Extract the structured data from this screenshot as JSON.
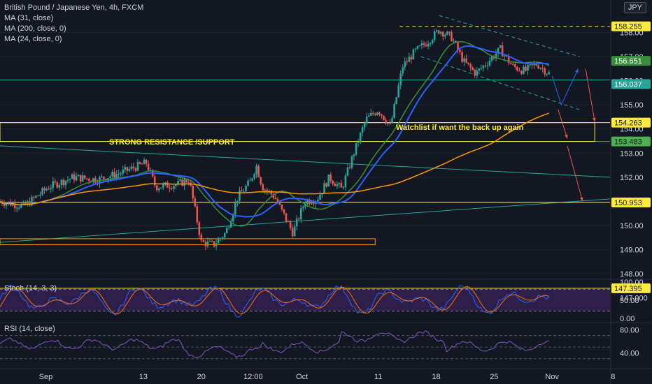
{
  "header": {
    "title": "British Pound / Japanese Yen, 4h, FXCM",
    "indicators": [
      "MA (31, close)",
      "MA (200, close, 0)",
      "MA (24, close, 0)"
    ],
    "currency": "JPY"
  },
  "annotations": {
    "resistance_label": "STRONG RESISTANCE /SUPPORT",
    "watchlist_label": "Watchlist if want the back up again"
  },
  "stoch": {
    "label": "Stoch (14, 3, 3)",
    "ticks": [
      "100.00",
      "50.00",
      "0.00"
    ]
  },
  "rsi": {
    "label": "RSI (14, close)",
    "ticks": [
      "80.00",
      "40.00"
    ]
  },
  "colors": {
    "background": "#131722",
    "up": "#26a69a",
    "down": "#ef5350",
    "ma31": "#2962ff",
    "ma200": "#ff9800",
    "ma24": "#388e3c",
    "level_yellow": "#ffeb3b",
    "level_green": "#4caf50",
    "trend_cyan": "#26a69a"
  },
  "chart_data": {
    "type": "candlestick",
    "y_range": [
      148.0,
      159.0
    ],
    "x_ticks": [
      "Sep",
      "13",
      "20",
      "12:00",
      "Oct",
      "11",
      "18",
      "25",
      "Nov",
      "8"
    ],
    "price_ticks": [
      "158.00",
      "157.00",
      "156.00",
      "155.00",
      "154.00",
      "153.00",
      "152.00",
      "151.00",
      "150.00",
      "149.00",
      "148.00",
      "147.000"
    ],
    "price_badges": [
      {
        "value": "158.255",
        "color": "#ffeb3b",
        "text_color": "#131722"
      },
      {
        "value": "156.651",
        "color": "#388e3c",
        "text_color": "#ffffff"
      },
      {
        "value": "156.037",
        "color": "#26a69a",
        "text_color": "#ffffff"
      },
      {
        "value": "154.263",
        "color": "#ffeb3b",
        "text_color": "#131722"
      },
      {
        "value": "153.483",
        "color": "#4caf50",
        "text_color": "#131722"
      },
      {
        "value": "150.953",
        "color": "#ffeb3b",
        "text_color": "#131722"
      },
      {
        "value": "147.395",
        "color": "#ffeb3b",
        "text_color": "#131722"
      }
    ],
    "levels": [
      {
        "name": "level-158-255",
        "value": 158.255,
        "style": "dashed",
        "color": "#ffeb3b",
        "x_start": 0.655
      },
      {
        "name": "level-156-037",
        "value": 156.037,
        "style": "solid",
        "color": "#26a69a",
        "x_start": 0
      },
      {
        "name": "level-154-263",
        "value": 154.263,
        "style": "solid",
        "color": "#ffeb3b",
        "x_start": 0
      },
      {
        "name": "level-153-483",
        "value": 153.483,
        "style": "solid",
        "color": "#4caf50",
        "x_start": 0
      },
      {
        "name": "level-150-953",
        "value": 150.953,
        "style": "solid",
        "color": "#ffeb3b",
        "x_start": 0
      },
      {
        "name": "level-147-395",
        "value": 147.395,
        "style": "solid",
        "color": "#ffeb3b",
        "x_start": 0
      }
    ],
    "price_path": [
      [
        0.0,
        151.0
      ],
      [
        0.04,
        150.8
      ],
      [
        0.08,
        151.6
      ],
      [
        0.12,
        152.0
      ],
      [
        0.16,
        151.9
      ],
      [
        0.2,
        152.2
      ],
      [
        0.24,
        152.6
      ],
      [
        0.255,
        151.6
      ],
      [
        0.29,
        151.7
      ],
      [
        0.31,
        151.9
      ],
      [
        0.33,
        149.3
      ],
      [
        0.35,
        149.2
      ],
      [
        0.37,
        149.7
      ],
      [
        0.39,
        151.2
      ],
      [
        0.41,
        151.8
      ],
      [
        0.42,
        152.5
      ],
      [
        0.43,
        151.6
      ],
      [
        0.45,
        151.2
      ],
      [
        0.47,
        150.2
      ],
      [
        0.48,
        149.7
      ],
      [
        0.5,
        151.0
      ],
      [
        0.52,
        151.1
      ],
      [
        0.54,
        152.0
      ],
      [
        0.56,
        151.5
      ],
      [
        0.58,
        153.0
      ],
      [
        0.6,
        154.4
      ],
      [
        0.62,
        154.8
      ],
      [
        0.64,
        154.1
      ],
      [
        0.66,
        156.6
      ],
      [
        0.68,
        157.2
      ],
      [
        0.7,
        157.6
      ],
      [
        0.72,
        158.1
      ],
      [
        0.74,
        157.8
      ],
      [
        0.76,
        156.8
      ],
      [
        0.78,
        156.3
      ],
      [
        0.8,
        156.8
      ],
      [
        0.82,
        157.3
      ],
      [
        0.84,
        156.6
      ],
      [
        0.86,
        156.4
      ],
      [
        0.88,
        156.7
      ],
      [
        0.9,
        156.3
      ]
    ]
  }
}
